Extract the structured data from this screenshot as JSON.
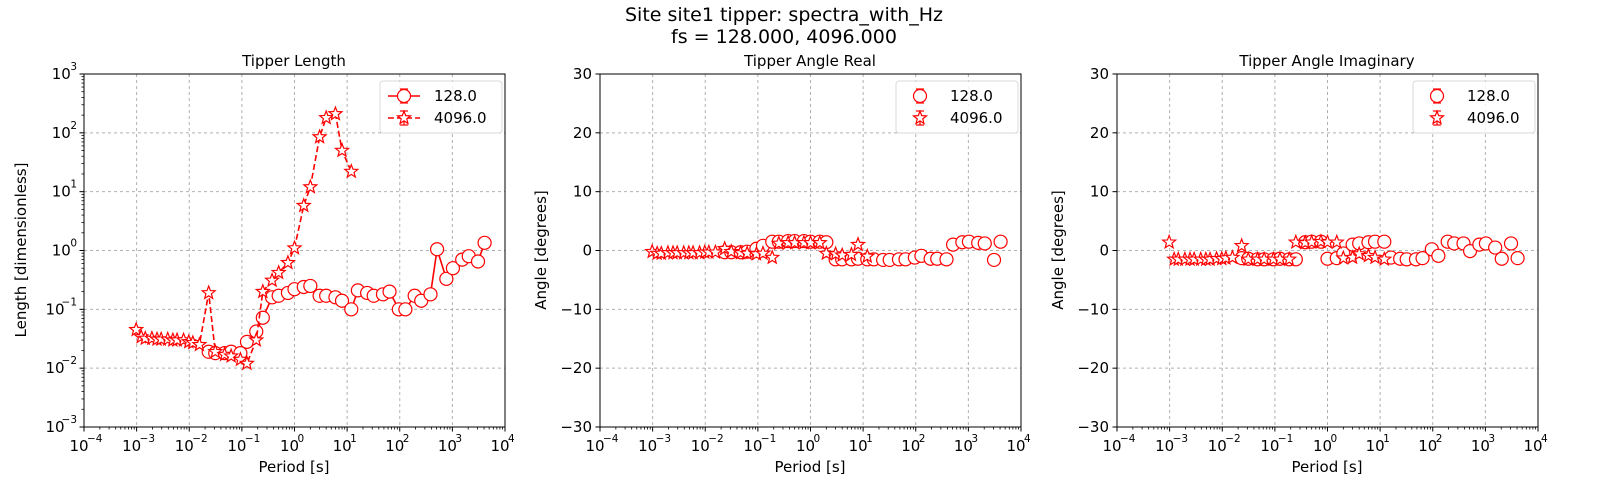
{
  "figure": {
    "title_line1": "Site site1 tipper: spectra_with_Hz",
    "title_line2": "fs = 128.000, 4096.000"
  },
  "colors": {
    "series": "#ff0000",
    "grid": "#b0b0b0",
    "axis": "#000000"
  },
  "chart_data": [
    {
      "type": "scatter",
      "title": "Tipper Length",
      "xlabel": "Period [s]",
      "ylabel": "Length [dimensionless]",
      "xscale": "log",
      "yscale": "log",
      "xlim": [
        0.0001,
        10000
      ],
      "ylim": [
        0.001,
        1000
      ],
      "xticks": [
        {
          "v": -4,
          "label": "10"
        },
        {
          "v": -3,
          "label": "10"
        },
        {
          "v": -2,
          "label": "10"
        },
        {
          "v": -1,
          "label": "10"
        },
        {
          "v": 0,
          "label": "10"
        },
        {
          "v": 1,
          "label": "10"
        },
        {
          "v": 2,
          "label": "10"
        },
        {
          "v": 3,
          "label": "10"
        },
        {
          "v": 4,
          "label": "10"
        }
      ],
      "yticks": [
        {
          "v": -3,
          "label": "10"
        },
        {
          "v": -2,
          "label": "10"
        },
        {
          "v": -1,
          "label": "10"
        },
        {
          "v": 0,
          "label": "10"
        },
        {
          "v": 1,
          "label": "10"
        },
        {
          "v": 2,
          "label": "10"
        },
        {
          "v": 3,
          "label": "10"
        }
      ],
      "grid": true,
      "legend_position": "top-right",
      "series": [
        {
          "name": "128.0",
          "marker": "circle",
          "line": "solid",
          "x": [
            0.0234,
            0.0312,
            0.0469,
            0.0625,
            0.0938,
            0.125,
            0.1875,
            0.25,
            0.375,
            0.5,
            0.75,
            1.0,
            1.5,
            2.0,
            3.0,
            4.0,
            6.0,
            8.0,
            12.0,
            16.0,
            24.0,
            32.0,
            48.0,
            64.0,
            96.0,
            128.0,
            192.0,
            256.0,
            384.0,
            512.0,
            768.0,
            1024.0,
            1536.0,
            2048.0,
            3072.0,
            4096.0
          ],
          "y": [
            0.019,
            0.018,
            0.018,
            0.019,
            0.018,
            0.028,
            0.042,
            0.072,
            0.16,
            0.17,
            0.19,
            0.22,
            0.24,
            0.25,
            0.17,
            0.17,
            0.16,
            0.14,
            0.1,
            0.21,
            0.19,
            0.17,
            0.18,
            0.2,
            0.1,
            0.1,
            0.17,
            0.14,
            0.18,
            1.05,
            0.33,
            0.5,
            0.7,
            0.8,
            0.65,
            1.35
          ]
        },
        {
          "name": "4096.0",
          "marker": "star",
          "line": "dashed",
          "x": [
            0.00098,
            0.00122,
            0.00146,
            0.00195,
            0.00244,
            0.00293,
            0.0039,
            0.00488,
            0.00586,
            0.0078,
            0.0098,
            0.0117,
            0.0156,
            0.0234,
            0.0312,
            0.0469,
            0.0625,
            0.0938,
            0.125,
            0.1875,
            0.25,
            0.375,
            0.5,
            0.75,
            1.0,
            1.5,
            2.0,
            3.0,
            4.0,
            6.0,
            8.0,
            12.0
          ],
          "y": [
            0.045,
            0.034,
            0.032,
            0.032,
            0.031,
            0.031,
            0.031,
            0.03,
            0.03,
            0.03,
            0.028,
            0.027,
            0.025,
            0.19,
            0.019,
            0.017,
            0.016,
            0.014,
            0.012,
            0.03,
            0.2,
            0.31,
            0.42,
            0.62,
            1.1,
            5.8,
            12.0,
            85.0,
            180.0,
            210.0,
            50.0,
            22.0
          ]
        }
      ]
    },
    {
      "type": "scatter",
      "title": "Tipper Angle Real",
      "xlabel": "Period [s]",
      "ylabel": "Angle [degrees]",
      "xscale": "log",
      "yscale": "linear",
      "xlim": [
        0.0001,
        10000
      ],
      "ylim": [
        -30,
        30
      ],
      "xticks": [
        {
          "v": -4,
          "label": "10"
        },
        {
          "v": -3,
          "label": "10"
        },
        {
          "v": -2,
          "label": "10"
        },
        {
          "v": -1,
          "label": "10"
        },
        {
          "v": 0,
          "label": "10"
        },
        {
          "v": 1,
          "label": "10"
        },
        {
          "v": 2,
          "label": "10"
        },
        {
          "v": 3,
          "label": "10"
        },
        {
          "v": 4,
          "label": "10"
        }
      ],
      "yticks": [
        {
          "v": -30,
          "label": "−30"
        },
        {
          "v": -20,
          "label": "−20"
        },
        {
          "v": -10,
          "label": "−10"
        },
        {
          "v": 0,
          "label": "0"
        },
        {
          "v": 10,
          "label": "10"
        },
        {
          "v": 20,
          "label": "20"
        },
        {
          "v": 30,
          "label": "30"
        }
      ],
      "grid": true,
      "legend_position": "top-right",
      "series": [
        {
          "name": "128.0",
          "marker": "circle",
          "line": "none",
          "x": [
            0.0234,
            0.0312,
            0.0469,
            0.0625,
            0.0938,
            0.125,
            0.1875,
            0.25,
            0.375,
            0.5,
            0.75,
            1.0,
            1.5,
            2.0,
            3.0,
            4.0,
            6.0,
            8.0,
            12.0,
            16.0,
            24.0,
            32.0,
            48.0,
            64.0,
            96.0,
            128.0,
            192.0,
            256.0,
            384.0,
            512.0,
            768.0,
            1024.0,
            1536.0,
            2048.0,
            3072.0,
            4096.0
          ],
          "y": [
            -0.3,
            -0.3,
            -0.3,
            -0.2,
            0.3,
            0.8,
            1.5,
            1.5,
            1.6,
            1.6,
            1.6,
            1.5,
            1.5,
            1.4,
            -1.5,
            -1.5,
            -1.5,
            -1.4,
            -1.5,
            -1.5,
            -1.6,
            -1.6,
            -1.5,
            -1.5,
            -1.2,
            -0.9,
            -1.4,
            -1.4,
            -1.5,
            1.0,
            1.4,
            1.5,
            1.3,
            1.2,
            -1.6,
            1.5
          ]
        },
        {
          "name": "4096.0",
          "marker": "star",
          "line": "none",
          "x": [
            0.00098,
            0.00122,
            0.00146,
            0.00195,
            0.00244,
            0.00293,
            0.0039,
            0.00488,
            0.00586,
            0.0078,
            0.0098,
            0.0117,
            0.0156,
            0.0234,
            0.0312,
            0.0469,
            0.0625,
            0.0938,
            0.125,
            0.1875,
            0.25,
            0.375,
            0.5,
            0.75,
            1.0,
            1.5,
            2.0,
            3.0,
            4.0,
            6.0,
            8.0,
            12.0
          ],
          "y": [
            -0.2,
            -0.5,
            -0.5,
            -0.4,
            -0.4,
            -0.4,
            -0.4,
            -0.4,
            -0.4,
            -0.4,
            -0.3,
            -0.3,
            -0.3,
            0.3,
            -0.2,
            -0.4,
            -0.5,
            -0.6,
            -0.5,
            -1.2,
            1.2,
            1.3,
            1.3,
            1.3,
            1.3,
            1.3,
            -0.5,
            -0.6,
            -0.8,
            -0.7,
            1.0,
            -1.0
          ]
        }
      ]
    },
    {
      "type": "scatter",
      "title": "Tipper Angle Imaginary",
      "xlabel": "Period [s]",
      "ylabel": "Angle [degrees]",
      "xscale": "log",
      "yscale": "linear",
      "xlim": [
        0.0001,
        10000
      ],
      "ylim": [
        -30,
        30
      ],
      "xticks": [
        {
          "v": -4,
          "label": "10"
        },
        {
          "v": -3,
          "label": "10"
        },
        {
          "v": -2,
          "label": "10"
        },
        {
          "v": -1,
          "label": "10"
        },
        {
          "v": 0,
          "label": "10"
        },
        {
          "v": 1,
          "label": "10"
        },
        {
          "v": 2,
          "label": "10"
        },
        {
          "v": 3,
          "label": "10"
        },
        {
          "v": 4,
          "label": "10"
        }
      ],
      "yticks": [
        {
          "v": -30,
          "label": "−30"
        },
        {
          "v": -20,
          "label": "−20"
        },
        {
          "v": -10,
          "label": "−10"
        },
        {
          "v": 0,
          "label": "0"
        },
        {
          "v": 10,
          "label": "10"
        },
        {
          "v": 20,
          "label": "20"
        },
        {
          "v": 30,
          "label": "30"
        }
      ],
      "grid": true,
      "legend_position": "top-right",
      "series": [
        {
          "name": "128.0",
          "marker": "circle",
          "line": "none",
          "x": [
            0.0234,
            0.0312,
            0.0469,
            0.0625,
            0.0938,
            0.125,
            0.1875,
            0.25,
            0.375,
            0.5,
            0.75,
            1.0,
            1.5,
            2.0,
            3.0,
            4.0,
            6.0,
            8.0,
            12.0,
            16.0,
            24.0,
            32.0,
            48.0,
            64.0,
            96.0,
            128.0,
            192.0,
            256.0,
            384.0,
            512.0,
            768.0,
            1024.0,
            1536.0,
            2048.0,
            3072.0,
            4096.0
          ],
          "y": [
            -1.3,
            -1.4,
            -1.5,
            -1.5,
            -1.5,
            -1.4,
            -1.5,
            -1.5,
            1.4,
            1.5,
            1.5,
            -1.4,
            -1.3,
            -0.5,
            1.0,
            1.2,
            1.4,
            1.5,
            1.5,
            -1.2,
            -1.4,
            -1.5,
            -1.5,
            -1.3,
            0.2,
            -0.9,
            1.5,
            1.2,
            1.2,
            -0.1,
            1.0,
            1.2,
            0.5,
            -1.4,
            1.2,
            -1.3
          ]
        },
        {
          "name": "4096.0",
          "marker": "star",
          "line": "none",
          "x": [
            0.00098,
            0.00122,
            0.00146,
            0.00195,
            0.00244,
            0.00293,
            0.0039,
            0.00488,
            0.00586,
            0.0078,
            0.0098,
            0.0117,
            0.0156,
            0.0234,
            0.0312,
            0.0469,
            0.0625,
            0.0938,
            0.125,
            0.1875,
            0.25,
            0.375,
            0.5,
            0.75,
            1.0,
            1.5,
            2.0,
            3.0,
            4.0,
            6.0,
            8.0,
            12.0
          ],
          "y": [
            1.4,
            -1.5,
            -1.5,
            -1.5,
            -1.5,
            -1.5,
            -1.5,
            -1.5,
            -1.5,
            -1.4,
            -1.4,
            -1.3,
            -1.2,
            0.8,
            -1.5,
            -1.5,
            -1.5,
            -1.5,
            -1.5,
            -1.5,
            1.4,
            1.3,
            1.4,
            1.5,
            1.4,
            1.4,
            -1.3,
            -1.2,
            -0.6,
            -0.9,
            -1.2,
            -1.5
          ]
        }
      ]
    }
  ]
}
